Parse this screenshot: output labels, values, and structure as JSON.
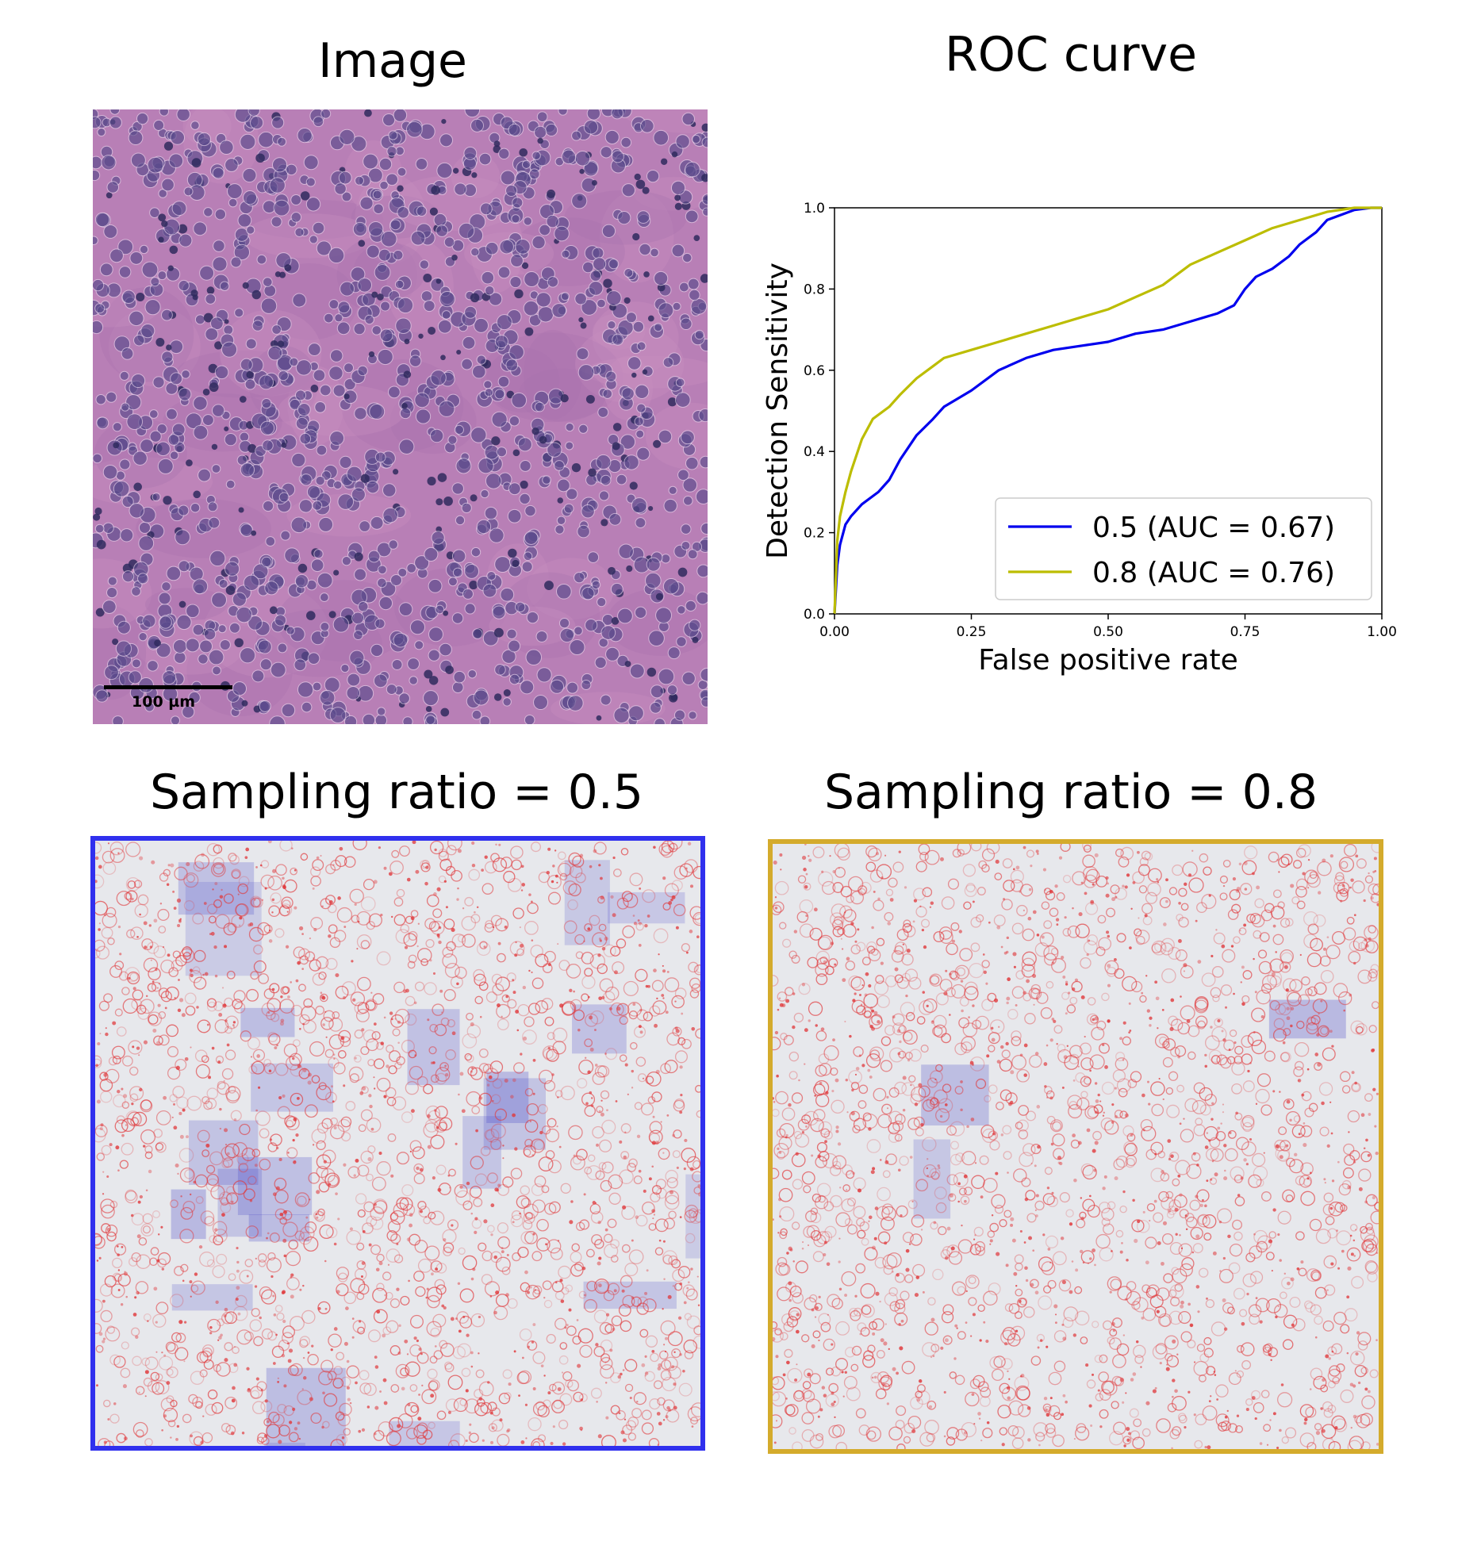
{
  "panels": {
    "image_title": "Image",
    "roc_title": "ROC curve",
    "map_05_title": "Sampling ratio = 0.5",
    "map_08_title": "Sampling ratio = 0.8",
    "scale_bar_label": "100 µm"
  },
  "colors": {
    "tissue_bg": "#b87fb6",
    "nucleus": "#5a4a8c",
    "map_bg": "#e7e8ec",
    "positive": "#e0393c",
    "negative": "#4a4ac8",
    "frame_05": "#3030ee",
    "frame_08": "#d4ab2c"
  },
  "chart_data": {
    "type": "line",
    "title": "ROC curve",
    "xlabel": "False positive rate",
    "ylabel": "Detection Sensitivity",
    "xlim": [
      0,
      1
    ],
    "ylim": [
      0,
      1
    ],
    "xticks": [
      "0.00",
      "0.25",
      "0.50",
      "0.75",
      "1.00"
    ],
    "yticks": [
      "0.0",
      "0.2",
      "0.4",
      "0.6",
      "0.8",
      "1.0"
    ],
    "grid": false,
    "legend_position": "lower-right",
    "series": [
      {
        "name": "0.5 (AUC = 0.67)",
        "color": "#0000ee",
        "x": [
          0,
          0.005,
          0.01,
          0.02,
          0.03,
          0.05,
          0.08,
          0.1,
          0.12,
          0.15,
          0.18,
          0.2,
          0.25,
          0.3,
          0.35,
          0.4,
          0.45,
          0.5,
          0.55,
          0.6,
          0.65,
          0.7,
          0.73,
          0.75,
          0.77,
          0.8,
          0.83,
          0.85,
          0.88,
          0.9,
          0.93,
          0.95,
          0.98,
          1.0
        ],
        "y": [
          0,
          0.12,
          0.17,
          0.22,
          0.24,
          0.27,
          0.3,
          0.33,
          0.38,
          0.44,
          0.48,
          0.51,
          0.55,
          0.6,
          0.63,
          0.65,
          0.66,
          0.67,
          0.69,
          0.7,
          0.72,
          0.74,
          0.76,
          0.8,
          0.83,
          0.85,
          0.88,
          0.91,
          0.94,
          0.97,
          0.985,
          0.995,
          1.0,
          1.0
        ]
      },
      {
        "name": "0.8 (AUC = 0.76)",
        "color": "#bcbd00",
        "x": [
          0,
          0.005,
          0.01,
          0.02,
          0.03,
          0.05,
          0.07,
          0.1,
          0.12,
          0.15,
          0.18,
          0.2,
          0.25,
          0.3,
          0.35,
          0.4,
          0.45,
          0.5,
          0.55,
          0.6,
          0.65,
          0.7,
          0.75,
          0.8,
          0.85,
          0.9,
          0.95,
          1.0
        ],
        "y": [
          0,
          0.18,
          0.24,
          0.3,
          0.35,
          0.43,
          0.48,
          0.51,
          0.54,
          0.58,
          0.61,
          0.63,
          0.65,
          0.67,
          0.69,
          0.71,
          0.73,
          0.75,
          0.78,
          0.81,
          0.86,
          0.89,
          0.92,
          0.95,
          0.97,
          0.99,
          1.0,
          1.0
        ]
      }
    ]
  }
}
